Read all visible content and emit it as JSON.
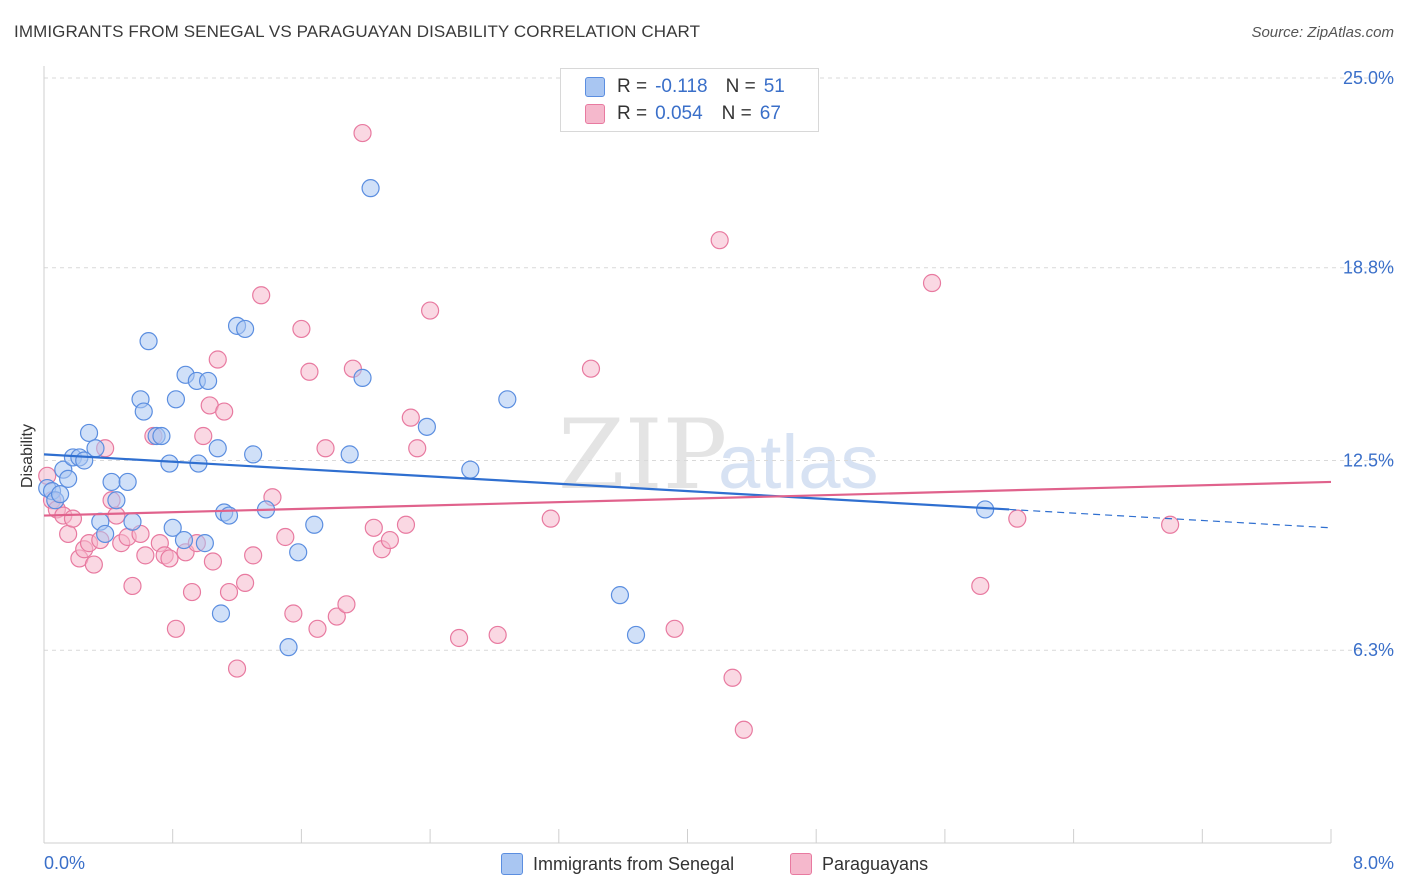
{
  "title": "IMMIGRANTS FROM SENEGAL VS PARAGUAYAN DISABILITY CORRELATION CHART",
  "source": "Source: ZipAtlas.com",
  "watermark": {
    "zip": "ZIP",
    "atlas": "atlas"
  },
  "colors": {
    "blue": "#5b8ee0",
    "blue_fill": "#a9c6f2",
    "blue_line": "#2f6fd0",
    "pink": "#e87aa0",
    "pink_fill": "#f5b8cc",
    "pink_line": "#e0628c",
    "label": "#3a6fc9"
  },
  "legend": {
    "rows": [
      {
        "r_label": "R =",
        "r_value": "-0.118",
        "n_label": "N =",
        "n_value": "51"
      },
      {
        "r_label": "R =",
        "r_value": "0.054",
        "n_label": "N =",
        "n_value": "67"
      }
    ]
  },
  "bottom_legend": [
    "Immigrants from Senegal",
    "Paraguayans"
  ],
  "chart_data": {
    "type": "scatter",
    "title": "IMMIGRANTS FROM SENEGAL VS PARAGUAYAN DISABILITY CORRELATION CHART",
    "xlabel": "",
    "ylabel": "Disability",
    "xlim": [
      0.0,
      8.0
    ],
    "ylim": [
      0.0,
      25.0
    ],
    "x_tick_labels": [
      "0.0%",
      "8.0%"
    ],
    "y_ticks": [
      6.3,
      12.5,
      18.8,
      25.0
    ],
    "y_tick_labels": [
      "6.3%",
      "12.5%",
      "18.8%",
      "25.0%"
    ],
    "grid": true,
    "series": [
      {
        "name": "Immigrants from Senegal",
        "r": -0.118,
        "n": 51,
        "trend": {
          "x0": 0.0,
          "y0": 12.7,
          "x1": 6.0,
          "y1": 10.9,
          "dashed_to_x": 8.0,
          "dashed_to_y": 10.3
        },
        "points": [
          [
            0.02,
            11.6
          ],
          [
            0.05,
            11.5
          ],
          [
            0.07,
            11.2
          ],
          [
            0.12,
            12.2
          ],
          [
            0.15,
            11.9
          ],
          [
            0.18,
            12.6
          ],
          [
            0.22,
            12.6
          ],
          [
            0.28,
            13.4
          ],
          [
            0.32,
            12.9
          ],
          [
            0.35,
            10.5
          ],
          [
            0.38,
            10.1
          ],
          [
            0.42,
            11.8
          ],
          [
            0.45,
            11.2
          ],
          [
            0.52,
            11.8
          ],
          [
            0.55,
            10.5
          ],
          [
            0.6,
            14.5
          ],
          [
            0.62,
            14.1
          ],
          [
            0.65,
            16.4
          ],
          [
            0.7,
            13.3
          ],
          [
            0.73,
            13.3
          ],
          [
            0.78,
            12.4
          ],
          [
            0.82,
            14.5
          ],
          [
            0.88,
            15.3
          ],
          [
            0.95,
            15.1
          ],
          [
            0.8,
            10.3
          ],
          [
            0.87,
            9.9
          ],
          [
            0.96,
            12.4
          ],
          [
            1.0,
            9.8
          ],
          [
            1.02,
            15.1
          ],
          [
            1.08,
            12.9
          ],
          [
            1.12,
            10.8
          ],
          [
            1.15,
            10.7
          ],
          [
            1.2,
            16.9
          ],
          [
            1.25,
            16.8
          ],
          [
            1.3,
            12.7
          ],
          [
            1.38,
            10.9
          ],
          [
            1.1,
            7.5
          ],
          [
            1.52,
            6.4
          ],
          [
            1.58,
            9.5
          ],
          [
            1.68,
            10.4
          ],
          [
            1.9,
            12.7
          ],
          [
            1.98,
            15.2
          ],
          [
            2.03,
            21.4
          ],
          [
            2.38,
            13.6
          ],
          [
            2.65,
            12.2
          ],
          [
            2.88,
            14.5
          ],
          [
            3.58,
            8.1
          ],
          [
            3.68,
            6.8
          ],
          [
            5.85,
            10.9
          ],
          [
            0.1,
            11.4
          ],
          [
            0.25,
            12.5
          ]
        ]
      },
      {
        "name": "Paraguayans",
        "r": 0.054,
        "n": 67,
        "trend": {
          "x0": 0.0,
          "y0": 10.7,
          "x1": 8.0,
          "y1": 11.8
        },
        "points": [
          [
            0.02,
            12.0
          ],
          [
            0.05,
            11.2
          ],
          [
            0.08,
            10.9
          ],
          [
            0.12,
            10.7
          ],
          [
            0.15,
            10.1
          ],
          [
            0.18,
            10.6
          ],
          [
            0.22,
            9.3
          ],
          [
            0.25,
            9.6
          ],
          [
            0.28,
            9.8
          ],
          [
            0.31,
            9.1
          ],
          [
            0.35,
            9.9
          ],
          [
            0.38,
            12.9
          ],
          [
            0.42,
            11.2
          ],
          [
            0.45,
            10.7
          ],
          [
            0.48,
            9.8
          ],
          [
            0.52,
            10.0
          ],
          [
            0.55,
            8.4
          ],
          [
            0.6,
            10.1
          ],
          [
            0.63,
            9.4
          ],
          [
            0.68,
            13.3
          ],
          [
            0.72,
            9.8
          ],
          [
            0.75,
            9.4
          ],
          [
            0.78,
            9.3
          ],
          [
            0.82,
            7.0
          ],
          [
            0.88,
            9.5
          ],
          [
            0.92,
            8.2
          ],
          [
            0.95,
            9.8
          ],
          [
            0.99,
            13.3
          ],
          [
            1.03,
            14.3
          ],
          [
            1.05,
            9.2
          ],
          [
            1.08,
            15.8
          ],
          [
            1.12,
            14.1
          ],
          [
            1.15,
            8.2
          ],
          [
            1.2,
            5.7
          ],
          [
            1.25,
            8.5
          ],
          [
            1.3,
            9.4
          ],
          [
            1.35,
            17.9
          ],
          [
            1.42,
            11.3
          ],
          [
            1.5,
            10.0
          ],
          [
            1.55,
            7.5
          ],
          [
            1.6,
            16.8
          ],
          [
            1.65,
            15.4
          ],
          [
            1.7,
            7.0
          ],
          [
            1.75,
            12.9
          ],
          [
            1.82,
            7.4
          ],
          [
            1.88,
            7.8
          ],
          [
            1.92,
            15.5
          ],
          [
            1.98,
            23.2
          ],
          [
            2.05,
            10.3
          ],
          [
            2.1,
            9.6
          ],
          [
            2.15,
            9.9
          ],
          [
            2.25,
            10.4
          ],
          [
            2.28,
            13.9
          ],
          [
            2.32,
            12.9
          ],
          [
            2.4,
            17.4
          ],
          [
            2.58,
            6.7
          ],
          [
            2.82,
            6.8
          ],
          [
            3.15,
            10.6
          ],
          [
            3.4,
            15.5
          ],
          [
            3.92,
            7.0
          ],
          [
            4.2,
            19.7
          ],
          [
            4.28,
            5.4
          ],
          [
            4.35,
            3.7
          ],
          [
            5.52,
            18.3
          ],
          [
            5.82,
            8.4
          ],
          [
            6.05,
            10.6
          ],
          [
            7.0,
            10.4
          ]
        ]
      }
    ]
  }
}
